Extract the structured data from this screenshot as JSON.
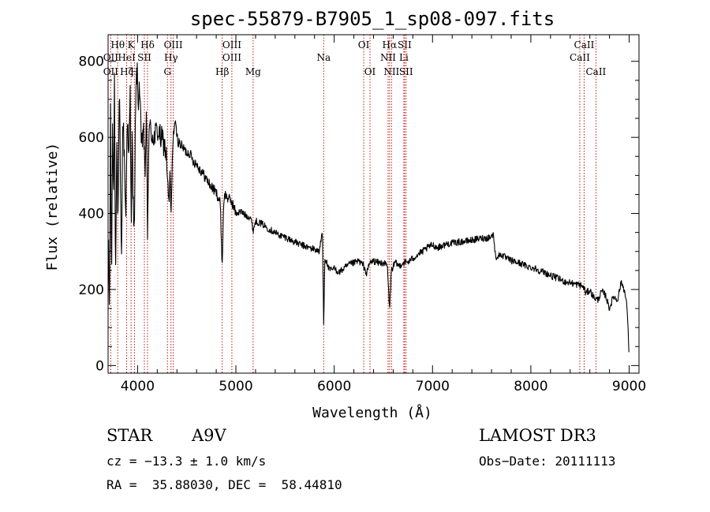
{
  "chart_data": {
    "type": "line",
    "title": "spec-55879-B7905_1_sp08-097.fits",
    "xlabel": "Wavelength (Å)",
    "ylabel": "Flux (relative)",
    "xlim": [
      3700,
      9100
    ],
    "ylim": [
      -20,
      870
    ],
    "x_ticks": [
      4000,
      5000,
      6000,
      7000,
      8000,
      9000
    ],
    "y_ticks": [
      0,
      200,
      400,
      600,
      800
    ],
    "grid": false,
    "legend": "none",
    "spectrum_anchors": [
      [
        3705,
        300
      ],
      [
        3715,
        120
      ],
      [
        3725,
        680
      ],
      [
        3735,
        180
      ],
      [
        3745,
        650
      ],
      [
        3755,
        420
      ],
      [
        3765,
        760
      ],
      [
        3775,
        250
      ],
      [
        3790,
        600
      ],
      [
        3800,
        350
      ],
      [
        3815,
        720
      ],
      [
        3825,
        500
      ],
      [
        3835,
        260
      ],
      [
        3850,
        660
      ],
      [
        3865,
        550
      ],
      [
        3880,
        380
      ],
      [
        3895,
        680
      ],
      [
        3910,
        520
      ],
      [
        3925,
        720
      ],
      [
        3935,
        360
      ],
      [
        3945,
        620
      ],
      [
        3955,
        430
      ],
      [
        3968,
        330
      ],
      [
        3980,
        700
      ],
      [
        3995,
        780
      ],
      [
        4005,
        690
      ],
      [
        4020,
        740
      ],
      [
        4040,
        560
      ],
      [
        4060,
        640
      ],
      [
        4075,
        480
      ],
      [
        4090,
        690
      ],
      [
        4101,
        320
      ],
      [
        4115,
        630
      ],
      [
        4140,
        610
      ],
      [
        4170,
        600
      ],
      [
        4200,
        620
      ],
      [
        4230,
        600
      ],
      [
        4260,
        590
      ],
      [
        4290,
        560
      ],
      [
        4320,
        420
      ],
      [
        4330,
        510
      ],
      [
        4340,
        390
      ],
      [
        4360,
        600
      ],
      [
        4380,
        640
      ],
      [
        4410,
        590
      ],
      [
        4440,
        580
      ],
      [
        4470,
        570
      ],
      [
        4500,
        560
      ],
      [
        4530,
        560
      ],
      [
        4560,
        540
      ],
      [
        4600,
        530
      ],
      [
        4650,
        510
      ],
      [
        4700,
        490
      ],
      [
        4750,
        470
      ],
      [
        4800,
        455
      ],
      [
        4840,
        430
      ],
      [
        4861,
        260
      ],
      [
        4875,
        430
      ],
      [
        4890,
        450
      ],
      [
        4920,
        440
      ],
      [
        4960,
        430
      ],
      [
        5000,
        400
      ],
      [
        5050,
        405
      ],
      [
        5100,
        395
      ],
      [
        5150,
        390
      ],
      [
        5175,
        355
      ],
      [
        5200,
        380
      ],
      [
        5270,
        372
      ],
      [
        5330,
        360
      ],
      [
        5400,
        350
      ],
      [
        5450,
        342
      ],
      [
        5500,
        338
      ],
      [
        5560,
        330
      ],
      [
        5620,
        322
      ],
      [
        5680,
        316
      ],
      [
        5740,
        310
      ],
      [
        5800,
        306
      ],
      [
        5850,
        300
      ],
      [
        5880,
        355
      ],
      [
        5893,
        110
      ],
      [
        5905,
        285
      ],
      [
        5950,
        250
      ],
      [
        6000,
        255
      ],
      [
        6050,
        245
      ],
      [
        6100,
        255
      ],
      [
        6150,
        265
      ],
      [
        6200,
        270
      ],
      [
        6250,
        275
      ],
      [
        6300,
        262
      ],
      [
        6330,
        240
      ],
      [
        6360,
        270
      ],
      [
        6400,
        275
      ],
      [
        6450,
        270
      ],
      [
        6500,
        270
      ],
      [
        6540,
        262
      ],
      [
        6563,
        145
      ],
      [
        6580,
        250
      ],
      [
        6620,
        270
      ],
      [
        6660,
        262
      ],
      [
        6700,
        270
      ],
      [
        6750,
        272
      ],
      [
        6800,
        282
      ],
      [
        6850,
        292
      ],
      [
        6900,
        300
      ],
      [
        6950,
        310
      ],
      [
        7000,
        318
      ],
      [
        7050,
        310
      ],
      [
        7100,
        315
      ],
      [
        7150,
        320
      ],
      [
        7200,
        322
      ],
      [
        7250,
        324
      ],
      [
        7300,
        326
      ],
      [
        7350,
        327
      ],
      [
        7400,
        330
      ],
      [
        7450,
        332
      ],
      [
        7500,
        335
      ],
      [
        7550,
        335
      ],
      [
        7600,
        340
      ],
      [
        7620,
        345
      ],
      [
        7640,
        285
      ],
      [
        7700,
        292
      ],
      [
        7750,
        282
      ],
      [
        7800,
        276
      ],
      [
        7850,
        272
      ],
      [
        7900,
        268
      ],
      [
        7950,
        262
      ],
      [
        8000,
        258
      ],
      [
        8050,
        255
      ],
      [
        8100,
        248
      ],
      [
        8150,
        244
      ],
      [
        8200,
        236
      ],
      [
        8250,
        232
      ],
      [
        8300,
        226
      ],
      [
        8350,
        220
      ],
      [
        8400,
        218
      ],
      [
        8450,
        214
      ],
      [
        8500,
        212
      ],
      [
        8540,
        205
      ],
      [
        8560,
        190
      ],
      [
        8600,
        198
      ],
      [
        8640,
        180
      ],
      [
        8680,
        172
      ],
      [
        8720,
        195
      ],
      [
        8760,
        185
      ],
      [
        8800,
        150
      ],
      [
        8840,
        182
      ],
      [
        8880,
        172
      ],
      [
        8920,
        220
      ],
      [
        8950,
        200
      ],
      [
        8980,
        150
      ],
      [
        9000,
        15
      ]
    ],
    "line_markers": [
      {
        "label": "Hθ",
        "x": 3798,
        "row": 0
      },
      {
        "label": "OII",
        "x": 3727,
        "row": 1
      },
      {
        "label": "OII",
        "x": 3727,
        "row": 2
      },
      {
        "label": "HeI",
        "x": 3889,
        "row": 1
      },
      {
        "label": "Hζ",
        "x": 3889,
        "row": 2
      },
      {
        "label": "K",
        "x": 3934,
        "row": 0
      },
      {
        "label": "H",
        "x": 3968,
        "row": 2
      },
      {
        "label": "SII",
        "x": 4069,
        "row": 1
      },
      {
        "label": "Hδ",
        "x": 4101,
        "row": 0
      },
      {
        "label": "OIII",
        "x": 4363,
        "row": 0
      },
      {
        "label": "Hγ",
        "x": 4340,
        "row": 1
      },
      {
        "label": "G",
        "x": 4304,
        "row": 2
      },
      {
        "label": "Hβ",
        "x": 4861,
        "row": 2
      },
      {
        "label": "OIII",
        "x": 4959,
        "row": 0
      },
      {
        "label": "OIII",
        "x": 4959,
        "row": 1
      },
      {
        "label": "Mg",
        "x": 5175,
        "row": 2
      },
      {
        "label": "Na",
        "x": 5893,
        "row": 1
      },
      {
        "label": "OI",
        "x": 6300,
        "row": 0
      },
      {
        "label": "OI",
        "x": 6364,
        "row": 2
      },
      {
        "label": "Hα",
        "x": 6563,
        "row": 0
      },
      {
        "label": "NII",
        "x": 6548,
        "row": 1
      },
      {
        "label": "NII",
        "x": 6583,
        "row": 2
      },
      {
        "label": "SII",
        "x": 6716,
        "row": 0
      },
      {
        "label": "Li",
        "x": 6708,
        "row": 1
      },
      {
        "label": "SII",
        "x": 6731,
        "row": 2
      },
      {
        "label": "CaII",
        "x": 8542,
        "row": 0
      },
      {
        "label": "CaII",
        "x": 8498,
        "row": 1
      },
      {
        "label": "CaII",
        "x": 8662,
        "row": 2
      }
    ]
  },
  "info": {
    "class": "STAR",
    "subclass": "A9V",
    "survey": "LAMOST DR3",
    "cz": "cz = −13.3 ± 1.0 km/s",
    "obs_date": "Obs−Date: 20111113",
    "radec": "RA =  35.88030, DEC =  58.44810"
  },
  "colors": {
    "spectrum": "#000000",
    "marker_line": "#c01818",
    "axis": "#000000",
    "background": "#ffffff"
  }
}
